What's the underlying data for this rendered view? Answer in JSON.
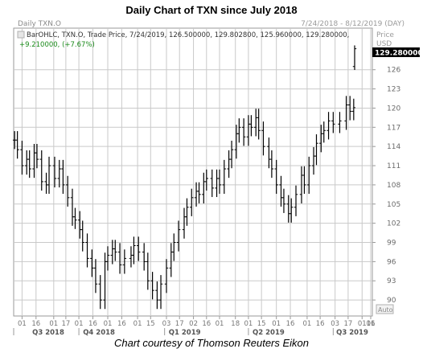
{
  "header": {
    "title": "Daily Chart of TXN since July 2018"
  },
  "chart_header": {
    "symbol_tab": "Daily TXN.O",
    "date_range": "7/24/2018 - 8/12/2019 (DAY)",
    "info_line": "BarOHLC, TXN.O, Trade Price, 7/24/2019, 126.500000, 129.802800, 125.960000, 129.280000,",
    "change_line": "+9.210000, (+7.67%)",
    "price_label": "Price",
    "currency_label": "USD",
    "last_price_label": "129.280000",
    "auto_label": "Auto"
  },
  "colors": {
    "bars": "#000000",
    "grid": "#c9c9c9",
    "text": "#6b6b6b",
    "background": "#ffffff"
  },
  "footer": {
    "caption": "Chart courtesy of Thomson Reuters Eikon"
  },
  "chart_data": {
    "type": "ohlc",
    "title": "Daily Chart of TXN since July 2018",
    "ylim": [
      87.5,
      132.5
    ],
    "y_ticks": [
      90,
      93,
      96,
      99,
      102,
      105,
      108,
      111,
      114,
      117,
      120,
      123,
      126
    ],
    "y_tick_labels": [
      "90",
      "93",
      "96",
      "99",
      "102",
      "105",
      "108",
      "111",
      "114",
      "117",
      "120",
      "123",
      "126"
    ],
    "x_day_labels": [
      "01",
      "16",
      "01",
      "17",
      "01",
      "16",
      "01",
      "16",
      "01",
      "15",
      "03",
      "17",
      "02",
      "16",
      "01",
      "18",
      "01",
      "15",
      "01",
      "16",
      "01",
      "16",
      "03",
      "17",
      "01",
      "16",
      "01"
    ],
    "quarter_labels": [
      "Q3 2018",
      "Q4 2018",
      "Q1 2019",
      "Q2 2019",
      "Q3 2019"
    ],
    "series": [
      {
        "dates": [
          "2018-07-24",
          "2018-07-27",
          "2018-08-01",
          "2018-08-06",
          "2018-08-09",
          "2018-08-14",
          "2018-08-17",
          "2018-08-22",
          "2018-08-27",
          "2018-08-30",
          "2018-09-05",
          "2018-09-10",
          "2018-09-14",
          "2018-09-19",
          "2018-09-24",
          "2018-09-27",
          "2018-10-02",
          "2018-10-05",
          "2018-10-10",
          "2018-10-15",
          "2018-10-19",
          "2018-10-24",
          "2018-10-29",
          "2018-11-01",
          "2018-11-06",
          "2018-11-09",
          "2018-11-14",
          "2018-11-19",
          "2018-11-26",
          "2018-11-29",
          "2018-12-04",
          "2018-12-10",
          "2018-12-14",
          "2018-12-19",
          "2018-12-24",
          "2018-12-28",
          "2019-01-03",
          "2019-01-08",
          "2019-01-11",
          "2019-01-16",
          "2019-01-22",
          "2019-01-25",
          "2019-01-30",
          "2019-02-04",
          "2019-02-07",
          "2019-02-12",
          "2019-02-15",
          "2019-02-21",
          "2019-02-26",
          "2019-03-01",
          "2019-03-06",
          "2019-03-11",
          "2019-03-14",
          "2019-03-19",
          "2019-03-22",
          "2019-03-27",
          "2019-04-01",
          "2019-04-04",
          "2019-04-09",
          "2019-04-12",
          "2019-04-17",
          "2019-04-23",
          "2019-04-26",
          "2019-05-01",
          "2019-05-06",
          "2019-05-09",
          "2019-05-14",
          "2019-05-17",
          "2019-05-22",
          "2019-05-28",
          "2019-05-31",
          "2019-06-05",
          "2019-06-10",
          "2019-06-13",
          "2019-06-18",
          "2019-06-21",
          "2019-06-26",
          "2019-07-01",
          "2019-07-08",
          "2019-07-15",
          "2019-07-19",
          "2019-07-23",
          "2019-07-24"
        ],
        "values": [
          115.0,
          113.5,
          111.0,
          112.0,
          110.5,
          113.0,
          112.0,
          108.5,
          108.0,
          111.0,
          109.0,
          110.5,
          108.0,
          106.0,
          103.0,
          102.5,
          101.0,
          99.0,
          96.5,
          95.0,
          92.5,
          90.0,
          96.0,
          97.0,
          98.0,
          97.5,
          95.5,
          96.5,
          97.0,
          98.5,
          97.5,
          96.0,
          93.0,
          91.5,
          90.0,
          92.5,
          95.0,
          97.5,
          99.0,
          101.0,
          103.0,
          104.5,
          106.0,
          107.0,
          106.5,
          108.5,
          109.0,
          107.5,
          109.0,
          108.0,
          110.5,
          112.0,
          113.5,
          116.0,
          117.0,
          115.5,
          117.5,
          117.0,
          118.5,
          116.5,
          114.0,
          112.0,
          110.5,
          108.0,
          106.0,
          105.0,
          103.5,
          104.5,
          106.5,
          109.5,
          108.0,
          111.0,
          112.5,
          114.5,
          116.0,
          116.5,
          118.0,
          117.5,
          118.0,
          120.5,
          119.5,
          120.07,
          129.28
        ]
      }
    ]
  }
}
